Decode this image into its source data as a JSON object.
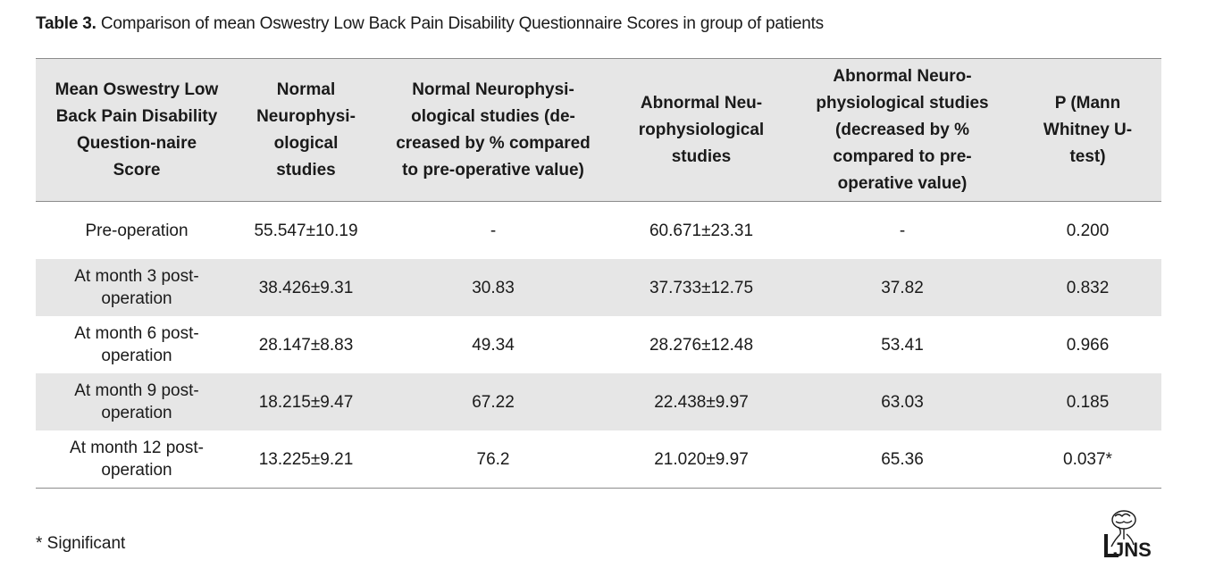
{
  "caption": {
    "label": "Table 3.",
    "text": " Comparison of mean Oswestry Low Back Pain Disability Questionnaire Scores in group of patients"
  },
  "table": {
    "headers": [
      "Mean Oswestry Low Back Pain Disability Question-naire Score",
      "Normal Neurophysi-ological studies",
      "Normal Neurophysi-ological studies (de-creased by % compared to pre-operative value)",
      "Abnormal Neu-rophysiological studies",
      "Abnormal Neuro-physiological studies (decreased by % compared to pre-operative value)",
      "P (Mann Whitney U-test)"
    ],
    "rows": [
      [
        "Pre-operation",
        "55.547±10.19",
        "-",
        "60.671±23.31",
        "-",
        "0.200"
      ],
      [
        "At month 3 post-operation",
        "38.426±9.31",
        "30.83",
        "37.733±12.75",
        "37.82",
        "0.832"
      ],
      [
        "At month 6 post-operation",
        "28.147±8.83",
        "49.34",
        "28.276±12.48",
        "53.41",
        "0.966"
      ],
      [
        "At month 9 post-operation",
        "18.215±9.47",
        "67.22",
        "22.438±9.97",
        "63.03",
        "0.185"
      ],
      [
        "At month 12 post-operation",
        "13.225±9.21",
        "76.2",
        "21.020±9.97",
        "65.36",
        "0.037*"
      ]
    ]
  },
  "footnote": "* Significant",
  "logo": {
    "icon": "brain-figure-logo",
    "text": "JNS"
  }
}
